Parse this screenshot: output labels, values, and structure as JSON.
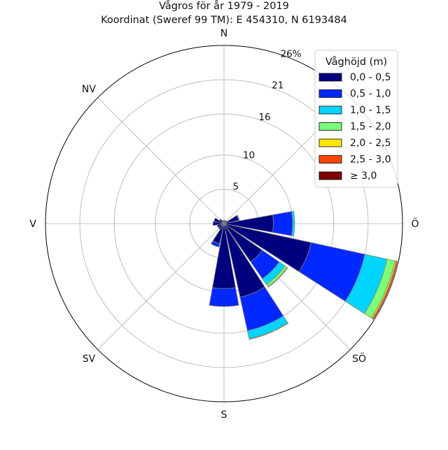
{
  "chart_data": {
    "type": "windrose",
    "title": "Vågros för år 1979 - 2019",
    "subtitle": "Koordinat (Sweref 99 TM): E 454310, N 6193484",
    "directions": [
      "N",
      "NV",
      "V",
      "SV",
      "S",
      "SÖ",
      "Ö"
    ],
    "radial_ticks": [
      "5",
      "10",
      "16",
      "21",
      "26%"
    ],
    "radial_tick_values": [
      5,
      10,
      16,
      21,
      26
    ],
    "rmax": 26,
    "legend_title": "Våghöjd (m)",
    "legend_placement": "top-right",
    "grid": true,
    "bins": [
      {
        "label": "0,0 - 0,5",
        "color": "#00007f"
      },
      {
        "label": "0,5 - 1,0",
        "color": "#0028ff"
      },
      {
        "label": "1,0 - 1,5",
        "color": "#00d4ff"
      },
      {
        "label": "1,5 - 2,0",
        "color": "#7cff79"
      },
      {
        "label": "2,0 - 2,5",
        "color": "#ffe600"
      },
      {
        "label": "2,5 - 3,0",
        "color": "#ff4600"
      },
      {
        "label": "≥ 3,0",
        "color": "#7f0000"
      }
    ],
    "sectors": [
      {
        "angle": 0,
        "values": [
          0.4,
          0,
          0,
          0,
          0,
          0,
          0
        ]
      },
      {
        "angle": 22.5,
        "values": [
          0.5,
          0,
          0,
          0,
          0,
          0,
          0
        ]
      },
      {
        "angle": 45,
        "values": [
          0.5,
          0,
          0,
          0,
          0,
          0,
          0
        ]
      },
      {
        "angle": 67.5,
        "values": [
          2.2,
          0.1,
          0,
          0,
          0,
          0,
          0
        ]
      },
      {
        "angle": 90,
        "values": [
          7.2,
          2.8,
          0.3,
          0,
          0,
          0,
          0
        ]
      },
      {
        "angle": 112.5,
        "values": [
          13.0,
          8.0,
          3.3,
          1.2,
          0.2,
          0.2,
          0.1
        ]
      },
      {
        "angle": 135,
        "values": [
          6.8,
          3.0,
          1.0,
          0.4,
          0.1,
          0,
          0
        ]
      },
      {
        "angle": 157.5,
        "values": [
          11.0,
          5.0,
          1.2,
          0.1,
          0,
          0,
          0
        ]
      },
      {
        "angle": 180,
        "values": [
          9.5,
          2.6,
          0,
          0,
          0,
          0,
          0
        ]
      },
      {
        "angle": 202.5,
        "values": [
          3.0,
          0.5,
          0,
          0,
          0,
          0,
          0
        ]
      },
      {
        "angle": 225,
        "values": [
          1.0,
          0,
          0,
          0,
          0,
          0,
          0
        ]
      },
      {
        "angle": 247.5,
        "values": [
          1.0,
          0,
          0,
          0,
          0,
          0,
          0
        ]
      },
      {
        "angle": 270,
        "values": [
          1.6,
          0,
          0,
          0,
          0,
          0,
          0
        ]
      },
      {
        "angle": 292.5,
        "values": [
          1.5,
          0,
          0,
          0,
          0,
          0,
          0
        ]
      },
      {
        "angle": 315,
        "values": [
          0.8,
          0,
          0,
          0,
          0,
          0,
          0
        ]
      },
      {
        "angle": 337.5,
        "values": [
          0.5,
          0,
          0,
          0,
          0,
          0,
          0
        ]
      }
    ]
  }
}
